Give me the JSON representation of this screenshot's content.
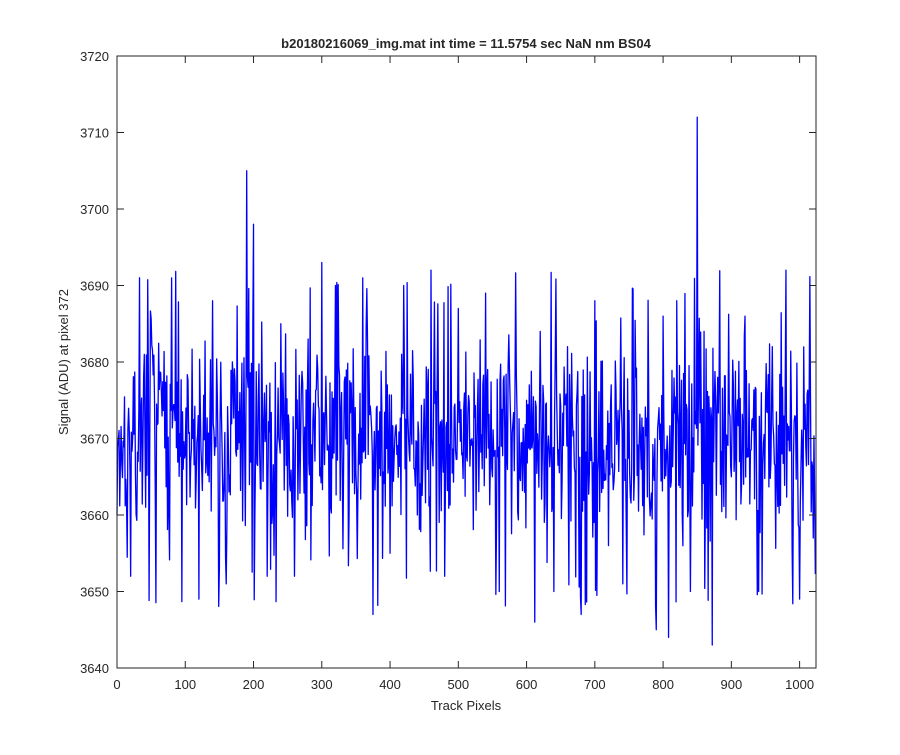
{
  "chart_data": {
    "type": "line",
    "title": "b20180216069_img.mat int time = 11.5754 sec  NaN nm BS04",
    "xlabel": "Track Pixels",
    "ylabel": "Signal (ADU) at pixel 372",
    "xlim": [
      0,
      1024
    ],
    "ylim": [
      3640,
      3720
    ],
    "xticks": [
      0,
      100,
      200,
      300,
      400,
      500,
      600,
      700,
      800,
      900,
      1000
    ],
    "yticks": [
      3640,
      3650,
      3660,
      3670,
      3680,
      3690,
      3700,
      3710,
      3720
    ],
    "grid": false,
    "legend": "none",
    "line_color": "#0000ff",
    "series": [
      {
        "x": [
          0,
          20,
          40,
          60,
          80,
          100,
          120,
          140,
          160,
          180,
          190,
          200,
          220,
          240,
          260,
          280,
          300,
          320,
          340,
          360,
          375,
          380,
          400,
          420,
          440,
          460,
          480,
          500,
          520,
          540,
          560,
          580,
          600,
          612,
          620,
          640,
          660,
          680,
          700,
          720,
          740,
          760,
          780,
          790,
          800,
          808,
          820,
          840,
          850,
          860,
          872,
          880,
          900,
          920,
          940,
          960,
          980,
          1000,
          1020
        ],
        "values": [
          3660,
          3652,
          3681,
          3672,
          3691,
          3668,
          3649,
          3688,
          3651,
          3676,
          3705,
          3698,
          3652,
          3685,
          3652,
          3683,
          3693,
          3690,
          3660,
          3691,
          3647,
          3674,
          3655,
          3690,
          3660,
          3692,
          3652,
          3687,
          3670,
          3689,
          3650,
          3672,
          3675,
          3646,
          3684,
          3650,
          3682,
          3647,
          3688,
          3656,
          3671,
          3678,
          3662,
          3645,
          3686,
          3644,
          3688,
          3650,
          3712,
          3684,
          3643,
          3678,
          3665,
          3686,
          3650,
          3682,
          3692,
          3649,
          3657
        ]
      }
    ]
  }
}
